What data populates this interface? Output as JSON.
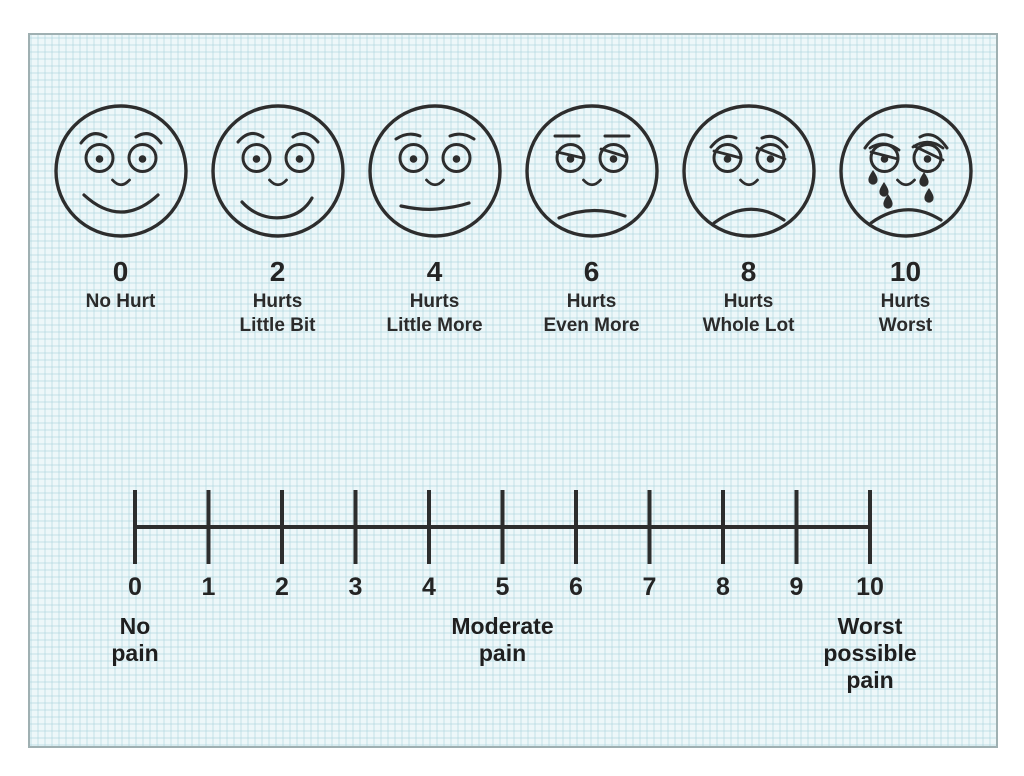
{
  "colors": {
    "page_bg": "#ffffff",
    "panel_bg": "#edf7f9",
    "panel_grid": "#cfe7ec",
    "panel_border": "#9fb0b2",
    "ink": "#2d2d2d",
    "text": "#242424"
  },
  "faces": {
    "items": [
      {
        "value": "0",
        "caption_lines": [
          "No Hurt"
        ],
        "icon": "face-no-hurt-icon"
      },
      {
        "value": "2",
        "caption_lines": [
          "Hurts",
          "Little Bit"
        ],
        "icon": "face-hurts-little-bit-icon"
      },
      {
        "value": "4",
        "caption_lines": [
          "Hurts",
          "Little More"
        ],
        "icon": "face-hurts-little-more-icon"
      },
      {
        "value": "6",
        "caption_lines": [
          "Hurts",
          "Even More"
        ],
        "icon": "face-hurts-even-more-icon"
      },
      {
        "value": "8",
        "caption_lines": [
          "Hurts",
          "Whole Lot"
        ],
        "icon": "face-hurts-whole-lot-icon"
      },
      {
        "value": "10",
        "caption_lines": [
          "Hurts",
          "Worst"
        ],
        "icon": "face-hurts-worst-icon"
      }
    ]
  },
  "scale": {
    "ticks": [
      "0",
      "1",
      "2",
      "3",
      "4",
      "5",
      "6",
      "7",
      "8",
      "9",
      "10"
    ],
    "range": [
      0,
      10
    ],
    "labels": [
      {
        "at_tick": "0",
        "lines": [
          "No",
          "pain"
        ]
      },
      {
        "at_tick": "5",
        "lines": [
          "Moderate",
          "pain"
        ]
      },
      {
        "at_tick": "10",
        "lines": [
          "Worst",
          "possible",
          "pain"
        ]
      }
    ]
  }
}
